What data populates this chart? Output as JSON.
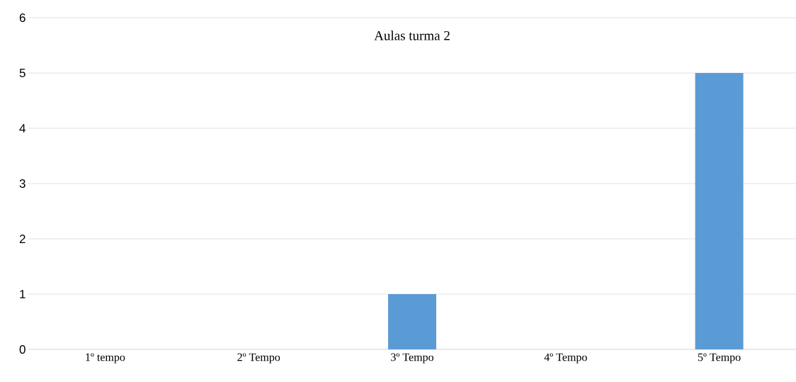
{
  "chart_data": {
    "type": "bar",
    "title": "Aulas turma 2",
    "categories": [
      "1º tempo",
      "2º Tempo",
      "3º Tempo",
      "4º Tempo",
      "5º Tempo"
    ],
    "values": [
      0,
      0,
      1,
      0,
      5
    ],
    "color": "#5b9bd5",
    "ylim": [
      0,
      6
    ],
    "yticks": [
      0,
      1,
      2,
      3,
      4,
      5,
      6
    ],
    "grid": "y"
  }
}
